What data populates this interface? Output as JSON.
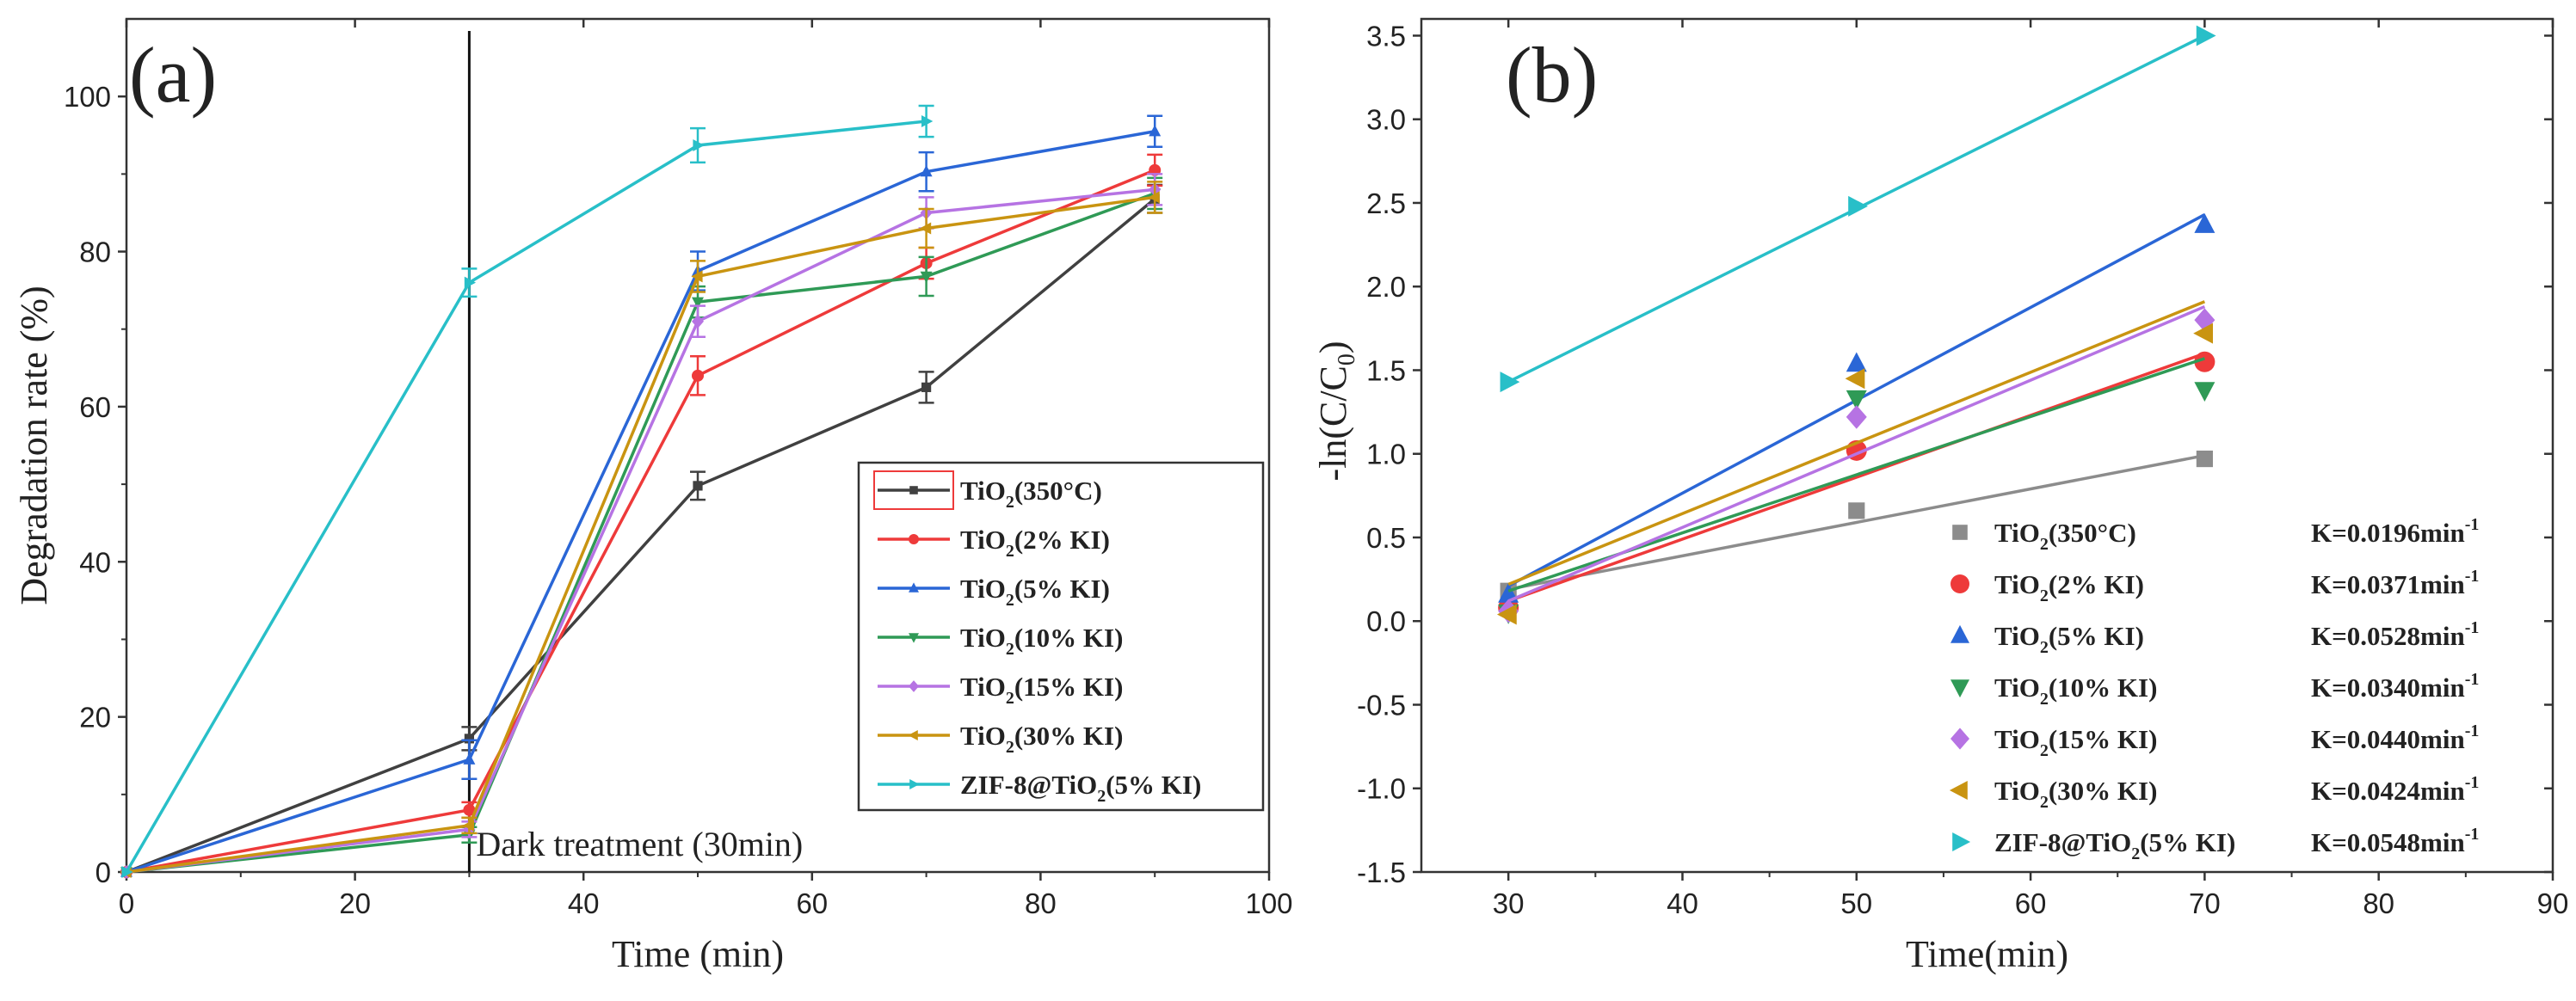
{
  "chart_data": [
    {
      "type": "line",
      "panel_label": "(a)",
      "xlabel": "Time (min)",
      "ylabel": "Degradation rate (%)",
      "xlim": [
        0,
        100
      ],
      "ylim": [
        0,
        110
      ],
      "xticks": [
        "0",
        "20",
        "40",
        "60",
        "80",
        "100"
      ],
      "yticks": [
        "0",
        "20",
        "40",
        "60",
        "80",
        "100"
      ],
      "x": [
        0,
        30,
        50,
        70,
        90
      ],
      "annotation": "Dark treatment (30min)",
      "annotation_x": 30,
      "legend_position": "bottom-right",
      "series": [
        {
          "name": "TiO₂(350°C)",
          "base": "TiO",
          "sub": "2",
          "rest": "(350°C)",
          "color": "#404040",
          "marker": "square",
          "values": [
            0,
            17.2,
            49.8,
            62.5,
            86.8
          ],
          "errors": [
            0,
            1.5,
            1.8,
            2.0,
            1.8
          ]
        },
        {
          "name": "TiO₂(2% KI)",
          "base": "TiO",
          "sub": "2",
          "rest": "(2% KI)",
          "color": "#ee3a3a",
          "marker": "circle",
          "values": [
            0,
            8.0,
            64.0,
            78.5,
            90.5
          ],
          "errors": [
            0,
            1.0,
            2.5,
            2.0,
            2.0
          ]
        },
        {
          "name": "TiO₂(5% KI)",
          "base": "TiO",
          "sub": "2",
          "rest": "(5% KI)",
          "color": "#2a66d6",
          "marker": "triangle-up",
          "values": [
            0,
            14.5,
            77.5,
            90.3,
            95.5
          ],
          "errors": [
            0,
            2.5,
            2.5,
            2.5,
            2.0
          ]
        },
        {
          "name": "TiO₂(10% KI)",
          "base": "TiO",
          "sub": "2",
          "rest": "(10% KI)",
          "color": "#2f9a56",
          "marker": "triangle-down",
          "values": [
            0,
            4.8,
            73.5,
            76.8,
            87.5
          ],
          "errors": [
            0,
            1.0,
            2.0,
            2.5,
            2.0
          ]
        },
        {
          "name": "TiO₂(15% KI)",
          "base": "TiO",
          "sub": "2",
          "rest": "(15% KI)",
          "color": "#b673e3",
          "marker": "diamond",
          "values": [
            0,
            5.5,
            71.0,
            85.0,
            88.0
          ],
          "errors": [
            0,
            1.0,
            2.0,
            2.0,
            2.0
          ]
        },
        {
          "name": "TiO₂(30% KI)",
          "base": "TiO",
          "sub": "2",
          "rest": "(30% KI)",
          "color": "#c99411",
          "marker": "triangle-left",
          "values": [
            0,
            6.0,
            76.8,
            83.0,
            87.0
          ],
          "errors": [
            0,
            1.0,
            2.0,
            2.5,
            2.0
          ]
        },
        {
          "name": "ZIF-8@TiO₂(5% KI)",
          "base": "ZIF-8@TiO",
          "sub": "2",
          "rest": "(5% KI)",
          "color": "#28bfc8",
          "marker": "triangle-right",
          "values": [
            0,
            76.0,
            93.7,
            96.8,
            null
          ],
          "errors": [
            0,
            1.8,
            2.2,
            2.0,
            0
          ]
        }
      ]
    },
    {
      "type": "scatter",
      "panel_label": "(b)",
      "xlabel": "Time(min)",
      "ylabel": "-ln(C/C0)",
      "ylabel_base": "-ln(C/C",
      "ylabel_sub": "0",
      "ylabel_end": ")",
      "xlim": [
        25,
        90
      ],
      "ylim": [
        -1.5,
        3.6
      ],
      "xticks": [
        "30",
        "40",
        "50",
        "60",
        "70",
        "80",
        "90"
      ],
      "yticks": [
        "-1.5",
        "-1.0",
        "-0.5",
        "0.0",
        "0.5",
        "1.0",
        "1.5",
        "2.0",
        "2.5",
        "3.0",
        "3.5"
      ],
      "x": [
        30,
        50,
        70
      ],
      "legend_position": "bottom-right",
      "series": [
        {
          "name": "TiO₂(350°C)",
          "base": "TiO",
          "sub": "2",
          "rest": "(350°C)",
          "k_label": "K=0.0196min",
          "k_sup": "-1",
          "color": "#8c8c8c",
          "marker": "square",
          "values": [
            0.18,
            0.66,
            0.97
          ],
          "fit": [
            0.19,
            0.99
          ]
        },
        {
          "name": "TiO₂(2% KI)",
          "base": "TiO",
          "sub": "2",
          "rest": "(2% KI)",
          "k_label": "K=0.0371min",
          "k_sup": "-1",
          "color": "#ee3a3a",
          "marker": "circle",
          "values": [
            0.08,
            1.02,
            1.55
          ],
          "fit": [
            0.12,
            1.6
          ]
        },
        {
          "name": "TiO₂(5% KI)",
          "base": "TiO",
          "sub": "2",
          "rest": "(5% KI)",
          "k_label": "K=0.0528min",
          "k_sup": "-1",
          "color": "#2a66d6",
          "marker": "triangle-up",
          "values": [
            0.16,
            1.54,
            2.37
          ],
          "fit": [
            0.21,
            2.43
          ]
        },
        {
          "name": "TiO₂(10% KI)",
          "base": "TiO",
          "sub": "2",
          "rest": "(10% KI)",
          "k_label": "K=0.0340min",
          "k_sup": "-1",
          "color": "#2f9a56",
          "marker": "triangle-down",
          "values": [
            0.05,
            1.33,
            1.38
          ],
          "fit": [
            0.18,
            1.57
          ]
        },
        {
          "name": "TiO₂(15% KI)",
          "base": "TiO",
          "sub": "2",
          "rest": "(15% KI)",
          "k_label": "K=0.0440min",
          "k_sup": "-1",
          "color": "#b673e3",
          "marker": "diamond",
          "values": [
            0.06,
            1.22,
            1.8
          ],
          "fit": [
            0.12,
            1.88
          ]
        },
        {
          "name": "TiO₂(30% KI)",
          "base": "TiO",
          "sub": "2",
          "rest": "(30% KI)",
          "k_label": "K=0.0424min",
          "k_sup": "-1",
          "color": "#c99411",
          "marker": "triangle-left",
          "values": [
            0.04,
            1.45,
            1.72
          ],
          "fit": [
            0.22,
            1.91
          ]
        },
        {
          "name": "ZIF-8@TiO₂(5% KI)",
          "base": "ZIF-8@TiO",
          "sub": "2",
          "rest": "(5% KI)",
          "k_label": "K=0.0548min",
          "k_sup": "-1",
          "color": "#28bfc8",
          "marker": "triangle-right",
          "values": [
            1.43,
            2.48,
            3.5
          ],
          "fit": [
            1.43,
            3.5
          ]
        }
      ]
    }
  ]
}
